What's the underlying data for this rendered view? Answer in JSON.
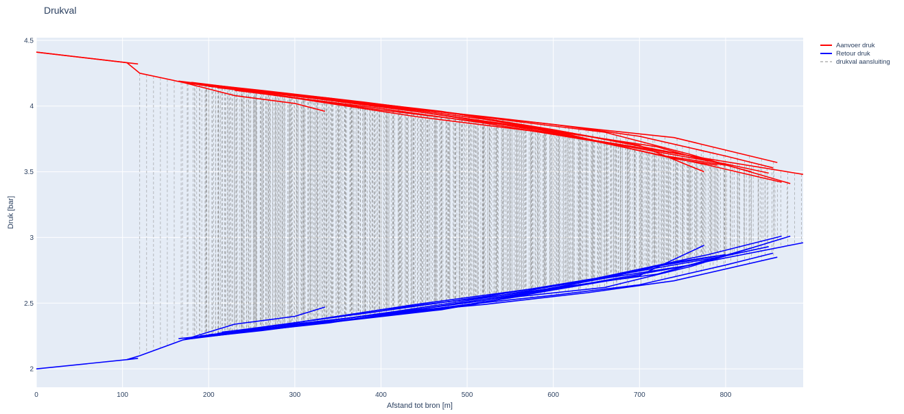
{
  "chart_data": {
    "type": "line",
    "title": "Drukval",
    "xlabel": "Afstand tot bron [m]",
    "ylabel": "Druk [bar]",
    "xlim": [
      0,
      890
    ],
    "ylim": [
      1.86,
      4.52
    ],
    "x_ticks": [
      0,
      100,
      200,
      300,
      400,
      500,
      600,
      700,
      800
    ],
    "y_ticks": [
      2,
      2.5,
      3,
      3.5,
      4,
      4.5
    ],
    "y_tick_labels": [
      "2",
      "2.5",
      "3",
      "3.5",
      "4",
      "4.5"
    ],
    "grid": true,
    "legend_position": "top-right",
    "colors": {
      "supply": "#ff0000",
      "return": "#0000ff",
      "connection": "#888888",
      "plot_bg": "#e5ecf6",
      "text": "#2a3f5f"
    },
    "series": [
      {
        "name": "Aanvoer druk",
        "style": "solid",
        "lines": [
          [
            [
              0,
              4.41
            ],
            [
              105,
              4.33
            ],
            [
              120,
              4.25
            ],
            [
              170,
              4.18
            ],
            [
              300,
              4.06
            ],
            [
              440,
              3.92
            ],
            [
              600,
              3.79
            ],
            [
              750,
              3.63
            ],
            [
              890,
              3.48
            ]
          ],
          [
            [
              0,
              4.41
            ],
            [
              105,
              4.33
            ],
            [
              118,
              4.32
            ]
          ],
          [
            [
              165,
              4.19
            ],
            [
              240,
              4.13
            ],
            [
              340,
              4.06
            ],
            [
              420,
              3.99
            ],
            [
              520,
              3.92
            ],
            [
              640,
              3.83
            ],
            [
              740,
              3.76
            ],
            [
              860,
              3.57
            ]
          ],
          [
            [
              175,
              4.18
            ],
            [
              260,
              4.12
            ],
            [
              380,
              4.03
            ],
            [
              500,
              3.93
            ],
            [
              600,
              3.86
            ],
            [
              700,
              3.77
            ],
            [
              800,
              3.62
            ],
            [
              855,
              3.53
            ]
          ],
          [
            [
              180,
              4.18
            ],
            [
              280,
              4.1
            ],
            [
              400,
              4.0
            ],
            [
              480,
              3.95
            ],
            [
              560,
              3.88
            ],
            [
              660,
              3.8
            ],
            [
              760,
              3.63
            ],
            [
              875,
              3.41
            ]
          ],
          [
            [
              185,
              4.17
            ],
            [
              300,
              4.08
            ],
            [
              420,
              3.98
            ],
            [
              540,
              3.86
            ],
            [
              640,
              3.77
            ],
            [
              720,
              3.69
            ],
            [
              780,
              3.58
            ]
          ],
          [
            [
              190,
              4.16
            ],
            [
              320,
              4.06
            ],
            [
              450,
              3.95
            ],
            [
              560,
              3.85
            ],
            [
              660,
              3.72
            ],
            [
              740,
              3.6
            ],
            [
              790,
              3.55
            ]
          ],
          [
            [
              170,
              4.18
            ],
            [
              230,
              4.08
            ],
            [
              300,
              4.02
            ],
            [
              335,
              3.96
            ]
          ],
          [
            [
              200,
              4.15
            ],
            [
              350,
              4.05
            ],
            [
              470,
              3.96
            ],
            [
              600,
              3.82
            ],
            [
              700,
              3.7
            ],
            [
              775,
              3.5
            ]
          ],
          [
            [
              210,
              4.14
            ],
            [
              360,
              4.04
            ],
            [
              500,
              3.93
            ],
            [
              620,
              3.78
            ],
            [
              720,
              3.63
            ],
            [
              800,
              3.55
            ]
          ],
          [
            [
              215,
              4.14
            ],
            [
              380,
              4.02
            ],
            [
              520,
              3.9
            ],
            [
              640,
              3.77
            ],
            [
              760,
              3.62
            ],
            [
              830,
              3.5
            ]
          ],
          [
            [
              230,
              4.12
            ],
            [
              390,
              3.99
            ],
            [
              520,
              3.87
            ],
            [
              650,
              3.73
            ],
            [
              780,
              3.55
            ],
            [
              865,
              3.42
            ]
          ],
          [
            [
              250,
              4.11
            ],
            [
              400,
              3.97
            ],
            [
              540,
              3.86
            ],
            [
              670,
              3.71
            ],
            [
              800,
              3.56
            ],
            [
              850,
              3.49
            ]
          ]
        ]
      },
      {
        "name": "Retour druk",
        "style": "solid",
        "lines": [
          [
            [
              0,
              2.0
            ],
            [
              105,
              2.07
            ],
            [
              120,
              2.1
            ],
            [
              170,
              2.22
            ],
            [
              300,
              2.35
            ],
            [
              440,
              2.49
            ],
            [
              600,
              2.63
            ],
            [
              750,
              2.78
            ],
            [
              890,
              2.96
            ]
          ],
          [
            [
              105,
              2.07
            ],
            [
              118,
              2.08
            ]
          ],
          [
            [
              165,
              2.23
            ],
            [
              240,
              2.28
            ],
            [
              340,
              2.35
            ],
            [
              420,
              2.43
            ],
            [
              520,
              2.49
            ],
            [
              640,
              2.58
            ],
            [
              740,
              2.67
            ],
            [
              860,
              2.85
            ]
          ],
          [
            [
              175,
              2.23
            ],
            [
              260,
              2.29
            ],
            [
              380,
              2.39
            ],
            [
              500,
              2.49
            ],
            [
              600,
              2.56
            ],
            [
              700,
              2.64
            ],
            [
              800,
              2.79
            ],
            [
              855,
              2.88
            ]
          ],
          [
            [
              180,
              2.23
            ],
            [
              280,
              2.31
            ],
            [
              400,
              2.42
            ],
            [
              480,
              2.47
            ],
            [
              560,
              2.55
            ],
            [
              660,
              2.62
            ],
            [
              760,
              2.78
            ],
            [
              875,
              3.01
            ]
          ],
          [
            [
              185,
              2.24
            ],
            [
              300,
              2.33
            ],
            [
              420,
              2.44
            ],
            [
              540,
              2.56
            ],
            [
              640,
              2.65
            ],
            [
              720,
              2.72
            ],
            [
              780,
              2.83
            ]
          ],
          [
            [
              190,
              2.25
            ],
            [
              320,
              2.35
            ],
            [
              450,
              2.46
            ],
            [
              560,
              2.57
            ],
            [
              660,
              2.69
            ],
            [
              740,
              2.81
            ],
            [
              790,
              2.86
            ]
          ],
          [
            [
              170,
              2.22
            ],
            [
              230,
              2.34
            ],
            [
              300,
              2.4
            ],
            [
              335,
              2.47
            ]
          ],
          [
            [
              200,
              2.26
            ],
            [
              350,
              2.36
            ],
            [
              470,
              2.45
            ],
            [
              600,
              2.6
            ],
            [
              700,
              2.71
            ],
            [
              775,
              2.94
            ]
          ],
          [
            [
              210,
              2.27
            ],
            [
              360,
              2.37
            ],
            [
              500,
              2.48
            ],
            [
              620,
              2.64
            ],
            [
              720,
              2.78
            ],
            [
              800,
              2.87
            ]
          ],
          [
            [
              215,
              2.28
            ],
            [
              380,
              2.4
            ],
            [
              520,
              2.52
            ],
            [
              640,
              2.65
            ],
            [
              760,
              2.79
            ],
            [
              830,
              2.92
            ]
          ],
          [
            [
              230,
              2.29
            ],
            [
              390,
              2.43
            ],
            [
              520,
              2.55
            ],
            [
              650,
              2.69
            ],
            [
              780,
              2.87
            ],
            [
              865,
              3.01
            ]
          ],
          [
            [
              250,
              2.3
            ],
            [
              400,
              2.45
            ],
            [
              540,
              2.56
            ],
            [
              670,
              2.71
            ],
            [
              800,
              2.86
            ],
            [
              850,
              2.93
            ]
          ]
        ]
      },
      {
        "name": "drukval aansluiting",
        "style": "dashed"
      }
    ]
  }
}
